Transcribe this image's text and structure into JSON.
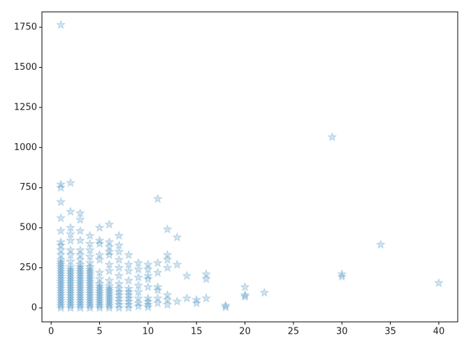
{
  "chart_data": {
    "type": "scatter",
    "color": "#1f77b4",
    "marker": "star",
    "xlim": [
      -0.95,
      41.95
    ],
    "ylim": [
      -87,
      1846
    ],
    "xticks": [
      0,
      5,
      10,
      15,
      20,
      25,
      30,
      35,
      40
    ],
    "yticks": [
      0,
      250,
      500,
      750,
      1000,
      1250,
      1500,
      1750
    ],
    "x": [
      1,
      1,
      1,
      1,
      1,
      1,
      1,
      1,
      1,
      1,
      1,
      1,
      1,
      1,
      1,
      1,
      1,
      1,
      1,
      1,
      1,
      1,
      1,
      1,
      1,
      1,
      1,
      1,
      1,
      1,
      1,
      2,
      2,
      2,
      2,
      2,
      2,
      2,
      2,
      2,
      2,
      2,
      2,
      2,
      2,
      2,
      2,
      2,
      2,
      2,
      2,
      2,
      2,
      2,
      2,
      2,
      2,
      3,
      3,
      3,
      3,
      3,
      3,
      3,
      3,
      3,
      3,
      3,
      3,
      3,
      3,
      3,
      3,
      3,
      3,
      3,
      3,
      3,
      3,
      3,
      3,
      3,
      3,
      4,
      4,
      4,
      4,
      4,
      4,
      4,
      4,
      4,
      4,
      4,
      4,
      4,
      4,
      4,
      4,
      4,
      4,
      4,
      4,
      4,
      4,
      4,
      5,
      5,
      5,
      5,
      5,
      5,
      5,
      5,
      5,
      5,
      5,
      5,
      5,
      5,
      5,
      5,
      5,
      5,
      6,
      6,
      6,
      6,
      6,
      6,
      6,
      6,
      6,
      6,
      6,
      6,
      6,
      6,
      6,
      6,
      6,
      6,
      7,
      7,
      7,
      7,
      7,
      7,
      7,
      7,
      7,
      7,
      7,
      7,
      7,
      7,
      8,
      8,
      8,
      8,
      8,
      8,
      8,
      8,
      8,
      8,
      8,
      9,
      9,
      9,
      9,
      9,
      9,
      9,
      9,
      10,
      10,
      10,
      10,
      10,
      10,
      10,
      10,
      10,
      11,
      11,
      11,
      11,
      11,
      11,
      11,
      12,
      12,
      12,
      12,
      12,
      12,
      12,
      13,
      13,
      13,
      14,
      14,
      15,
      15,
      16,
      16,
      16,
      18,
      18,
      20,
      20,
      20,
      22,
      29,
      30,
      30,
      34,
      40
    ],
    "values": [
      0,
      15,
      30,
      45,
      60,
      75,
      90,
      105,
      120,
      135,
      150,
      165,
      180,
      195,
      210,
      225,
      240,
      255,
      270,
      285,
      300,
      330,
      360,
      390,
      410,
      480,
      560,
      660,
      750,
      770,
      1765,
      0,
      15,
      30,
      45,
      60,
      75,
      90,
      105,
      120,
      135,
      150,
      165,
      180,
      195,
      210,
      225,
      240,
      255,
      290,
      330,
      360,
      420,
      460,
      500,
      600,
      780,
      0,
      15,
      30,
      45,
      60,
      75,
      90,
      105,
      120,
      135,
      150,
      165,
      180,
      195,
      210,
      225,
      240,
      255,
      270,
      300,
      330,
      360,
      420,
      480,
      550,
      590,
      0,
      15,
      30,
      45,
      60,
      75,
      90,
      105,
      120,
      135,
      150,
      165,
      180,
      195,
      210,
      225,
      240,
      255,
      280,
      320,
      360,
      400,
      450,
      0,
      15,
      30,
      45,
      60,
      75,
      90,
      105,
      120,
      135,
      150,
      180,
      220,
      300,
      330,
      400,
      420,
      500,
      0,
      15,
      30,
      45,
      60,
      75,
      90,
      105,
      120,
      135,
      170,
      230,
      270,
      330,
      350,
      380,
      410,
      520,
      0,
      20,
      40,
      60,
      80,
      100,
      120,
      150,
      200,
      250,
      300,
      350,
      390,
      450,
      0,
      20,
      40,
      60,
      80,
      100,
      120,
      170,
      230,
      270,
      330,
      10,
      30,
      60,
      100,
      140,
      190,
      240,
      280,
      5,
      20,
      40,
      60,
      130,
      180,
      200,
      240,
      270,
      30,
      60,
      110,
      130,
      220,
      280,
      680,
      20,
      50,
      80,
      250,
      300,
      330,
      490,
      40,
      270,
      440,
      60,
      200,
      30,
      50,
      60,
      180,
      210,
      5,
      15,
      70,
      80,
      130,
      95,
      1065,
      195,
      210,
      395,
      155
    ]
  }
}
